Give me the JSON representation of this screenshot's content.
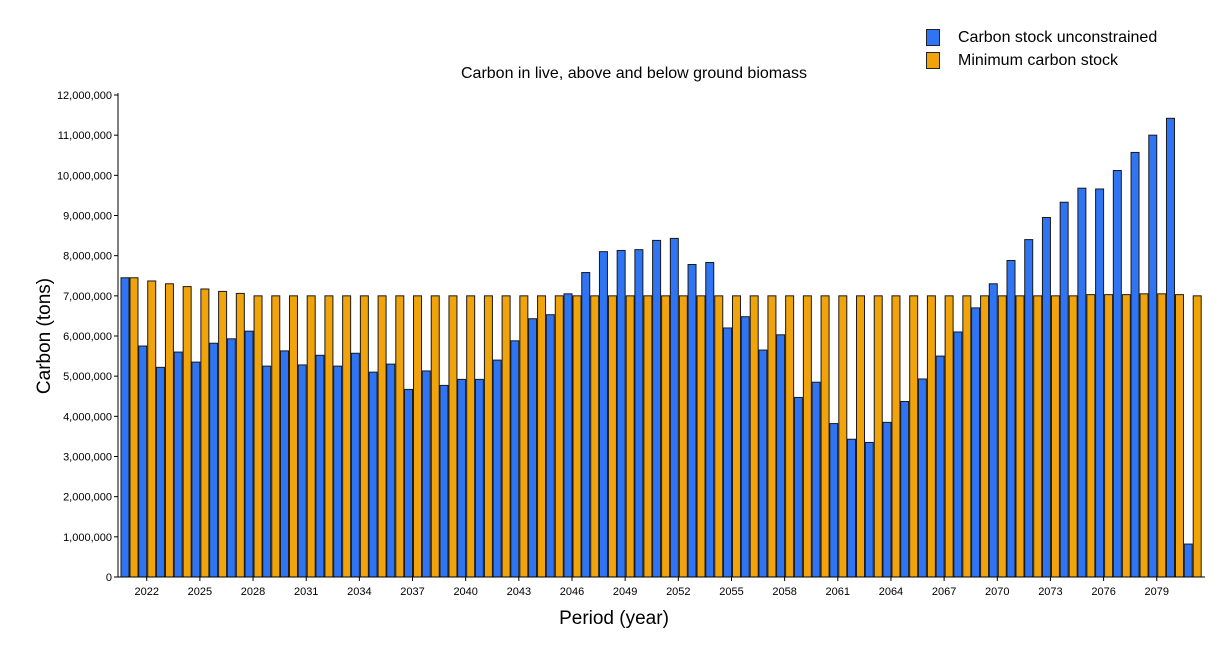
{
  "chart_data": {
    "type": "bar",
    "title": "Carbon in live, above and below ground biomass",
    "xlabel": "Period (year)",
    "ylabel": "Carbon  (tons)",
    "ylim": [
      0,
      12000000
    ],
    "yticks": [
      "0",
      "1,000,000",
      "2,000,000",
      "3,000,000",
      "4,000,000",
      "5,000,000",
      "6,000,000",
      "7,000,000",
      "8,000,000",
      "9,000,000",
      "10,000,000",
      "11,000,000",
      "12,000,000"
    ],
    "legend_position": "top-right",
    "grid": false,
    "x": [
      2021,
      2022,
      2023,
      2024,
      2025,
      2026,
      2027,
      2028,
      2029,
      2030,
      2031,
      2032,
      2033,
      2034,
      2035,
      2036,
      2037,
      2038,
      2039,
      2040,
      2041,
      2042,
      2043,
      2044,
      2045,
      2046,
      2047,
      2048,
      2049,
      2050,
      2051,
      2052,
      2053,
      2054,
      2055,
      2056,
      2057,
      2058,
      2059,
      2060,
      2061,
      2062,
      2063,
      2064,
      2065,
      2066,
      2067,
      2068,
      2069,
      2070,
      2071,
      2072,
      2073,
      2074,
      2075,
      2076,
      2077,
      2078,
      2079,
      2080,
      2081
    ],
    "xtick_labels": [
      "2022",
      "2025",
      "2028",
      "2031",
      "2034",
      "2037",
      "2040",
      "2043",
      "2046",
      "2049",
      "2052",
      "2055",
      "2058",
      "2061",
      "2064",
      "2067",
      "2070",
      "2073",
      "2076",
      "2079"
    ],
    "series": [
      {
        "name": "Carbon stock unconstrained",
        "color": "#2f74f2",
        "values": [
          7450000,
          5750000,
          5220000,
          5600000,
          5350000,
          5820000,
          5930000,
          6120000,
          5250000,
          5630000,
          5280000,
          5520000,
          5250000,
          5570000,
          5100000,
          5300000,
          4670000,
          5130000,
          4770000,
          4920000,
          4920000,
          5400000,
          5880000,
          6430000,
          6530000,
          7050000,
          7580000,
          8100000,
          8130000,
          8150000,
          8380000,
          8430000,
          7780000,
          7830000,
          6200000,
          6480000,
          5650000,
          6030000,
          4470000,
          4850000,
          3820000,
          3430000,
          3350000,
          3850000,
          4370000,
          4930000,
          5500000,
          6100000,
          6700000,
          7300000,
          7880000,
          8400000,
          8950000,
          9330000,
          9680000,
          9660000,
          10120000,
          10570000,
          11000000,
          11420000,
          820000
        ]
      },
      {
        "name": "Minimum carbon stock",
        "color": "#f0a30a",
        "values": [
          7450000,
          7370000,
          7300000,
          7230000,
          7170000,
          7110000,
          7060000,
          7000000,
          7000000,
          7000000,
          7000000,
          7000000,
          7000000,
          7000000,
          7000000,
          7000000,
          7000000,
          7000000,
          7000000,
          7000000,
          7000000,
          7000000,
          7000000,
          7000000,
          7000000,
          7000000,
          7000000,
          7000000,
          7000000,
          7000000,
          7000000,
          7000000,
          7000000,
          7000000,
          7000000,
          7000000,
          7000000,
          7000000,
          7000000,
          7000000,
          7000000,
          7000000,
          7000000,
          7000000,
          7000000,
          7000000,
          7000000,
          7000000,
          7000000,
          7000000,
          7000000,
          7000000,
          7000000,
          7000000,
          7030000,
          7030000,
          7030000,
          7050000,
          7050000,
          7030000,
          7000000
        ]
      }
    ]
  }
}
